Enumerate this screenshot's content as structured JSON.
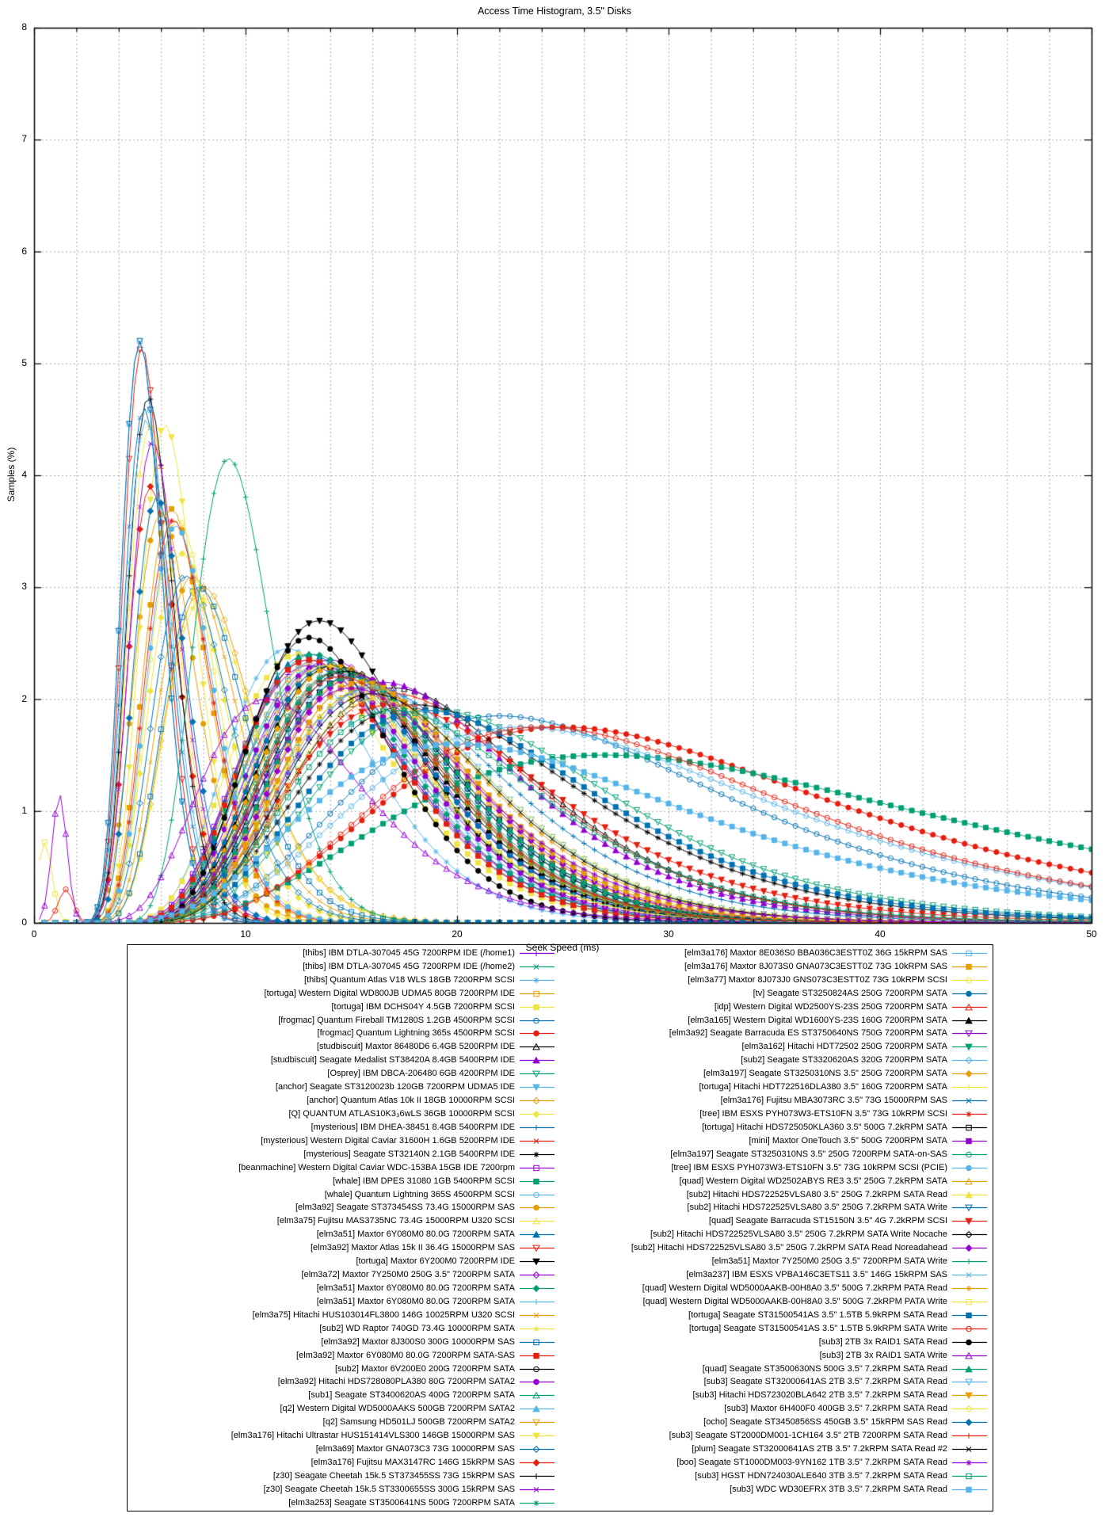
{
  "chart": {
    "title": "Access Time Histogram, 3.5\" Disks"
  },
  "chart_data": {
    "type": "line",
    "title": "Access Time Histogram, 3.5\" Disks",
    "xlabel": "Seek Speed (ms)",
    "ylabel": "Samples (%)",
    "xlim": [
      0,
      50
    ],
    "ylim": [
      0,
      8
    ],
    "x_ticks": [
      0,
      10,
      20,
      30,
      40,
      50
    ],
    "y_ticks": [
      0,
      1,
      2,
      3,
      4,
      5,
      6,
      7,
      8
    ],
    "x_minor_step": 2,
    "grid": true,
    "legend_position": "below",
    "legend_columns": 2,
    "legend_split_index": 42,
    "palette": [
      "#9400D3",
      "#009E73",
      "#56B4E9",
      "#E69F00",
      "#F0E442",
      "#0072B2",
      "#E51E10",
      "#000000"
    ],
    "series_fields": [
      "label",
      "color",
      "marker",
      "peak_ms",
      "peak_pct",
      "sigma",
      "spike_ms",
      "spike_pct"
    ],
    "series": [
      [
        "[thibs] IBM DTLA-307045 45G 7200RPM IDE (/home1)",
        "#9400D3",
        "plus",
        13,
        2.3,
        0.3,
        null,
        null
      ],
      [
        "[thibs] IBM DTLA-307045 45G 7200RPM IDE (/home2)",
        "#009E73",
        "cross",
        13.5,
        2.3,
        0.3,
        null,
        null
      ],
      [
        "[thibs] Quantum Atlas V18 WLS 18GB 7200RPM SCSI",
        "#56B4E9",
        "asterisk",
        12,
        2.45,
        0.28,
        null,
        null
      ],
      [
        "[tortuga] Western Digital WD800JB UDMA5 80GB 7200RPM IDE",
        "#E69F00",
        "square-open",
        13.5,
        2.35,
        0.3,
        null,
        null
      ],
      [
        "[tortuga] IBM DCHS04Y 4.5GB 7200RPM SCSI",
        "#F0E442",
        "square-filled",
        12.5,
        2.4,
        0.3,
        null,
        null
      ],
      [
        "[frogmac] Quantum Fireball TM1280S 1.2GB 4500RPM SCSI",
        "#0072B2",
        "circle-open",
        22,
        1.85,
        0.4,
        null,
        null
      ],
      [
        "[frogmac] Quantum Lightning 365s 4500RPM SCSI",
        "#E51E10",
        "circle-filled",
        25,
        1.75,
        0.42,
        null,
        null
      ],
      [
        "[studbiscuit] Maxtor 86480D6 6.4GB 5200RPM IDE",
        "#000000",
        "triangle-up-open",
        17,
        2.1,
        0.33,
        null,
        null
      ],
      [
        "[studbiscuit] Seagate Medalist ST38420A 8.4GB 5400RPM IDE",
        "#9400D3",
        "triangle-up-filled",
        16.5,
        2.15,
        0.33,
        null,
        null
      ],
      [
        "[Osprey] IBM DBCA-206480 6GB 4200RPM IDE",
        "#009E73",
        "triangle-down-open",
        19,
        1.9,
        0.36,
        null,
        null
      ],
      [
        "[anchor] Seagate ST3120023b 120GB 7200RPM UDMA5 IDE",
        "#56B4E9",
        "triangle-down-filled",
        13.8,
        2.3,
        0.3,
        null,
        null
      ],
      [
        "[anchor] Quantum Atlas 10k II 18GB 10000RPM SCSI",
        "#E69F00",
        "diamond-open",
        8,
        3.0,
        0.26,
        null,
        null
      ],
      [
        "[Q] QUANTUM ATLAS10K3₃6wLS 36GB 10000RPM SCSI",
        "#F0E442",
        "diamond-filled",
        7,
        3.3,
        0.25,
        null,
        null
      ],
      [
        "[mysterious] IBM DHEA-38451 8.4GB 5400RPM IDE",
        "#0072B2",
        "plus",
        16,
        2.1,
        0.33,
        null,
        null
      ],
      [
        "[mysterious] Western Digital Caviar 31600H 1.6GB 5200RPM IDE",
        "#E51E10",
        "cross",
        17,
        2.05,
        0.33,
        null,
        null
      ],
      [
        "[mysterious] Seagate ST32140N 2.1GB 5400RPM IDE",
        "#000000",
        "asterisk",
        18,
        1.95,
        0.36,
        null,
        null
      ],
      [
        "[beanmachine] Western Digital Caviar WDC-153BA 15GB IDE 7200rpm",
        "#9400D3",
        "square-open",
        13,
        2.35,
        0.3,
        null,
        null
      ],
      [
        "[whale] IBM DPES 31080 1GB 5400RPM SCSI",
        "#009E73",
        "square-filled",
        27,
        1.5,
        0.48,
        null,
        null
      ],
      [
        "[whale] Quantum Lightning 365S 4500RPM SCSI",
        "#56B4E9",
        "circle-open",
        23,
        1.75,
        0.42,
        null,
        null
      ],
      [
        "[elm3a92] Seagate ST373454SS 73.4G 15000RPM SAS",
        "#E69F00",
        "circle-filled",
        6,
        3.65,
        0.24,
        null,
        null
      ],
      [
        "[elm3a75] Fujitsu MAS3735NC 73.4G 15000RPM U320 SCSI",
        "#F0E442",
        "triangle-up-open",
        5.5,
        4.45,
        0.21,
        null,
        null
      ],
      [
        "[elm3a51] Maxtor 6Y080M0 80.0G 7200RPM SATA",
        "#0072B2",
        "triangle-up-filled",
        13,
        2.4,
        0.29,
        null,
        null
      ],
      [
        "[elm3a92] Maxtor Atlas 15k II 36.4G 15000RPM SAS",
        "#E51E10",
        "triangle-down-open",
        5.1,
        5.15,
        0.19,
        null,
        null
      ],
      [
        "[tortuga] Maxtor 6Y200M0 7200RPM IDE",
        "#000000",
        "triangle-down-filled",
        13.5,
        2.7,
        0.28,
        null,
        null
      ],
      [
        "[elm3a72] Maxtor 7Y250M0 250G 3.5\" 7200RPM SATA",
        "#9400D3",
        "diamond-open",
        14,
        2.35,
        0.29,
        null,
        null
      ],
      [
        "[elm3a51] Maxtor 6Y080M0 80.0G 7200RPM SATA",
        "#009E73",
        "diamond-filled",
        13.2,
        2.4,
        0.29,
        null,
        null
      ],
      [
        "[elm3a51] Maxtor 6Y080M0 80.0G 7200RPM SATA",
        "#56B4E9",
        "plus",
        13.4,
        2.35,
        0.29,
        null,
        null
      ],
      [
        "[elm3a75] Hitachi HUS103014FL3800 146G 10025RPM U320 SCSI",
        "#E69F00",
        "cross",
        7.5,
        3.1,
        0.25,
        null,
        null
      ],
      [
        "[sub2] WD Raptor 740GD 73.4G 10000RPM SATA",
        "#F0E442",
        "asterisk",
        8,
        2.9,
        0.26,
        null,
        null
      ],
      [
        "[elm3a92] Maxtor 8J300S0 300G 10000RPM SAS",
        "#0072B2",
        "square-open",
        7.8,
        3.0,
        0.25,
        null,
        null
      ],
      [
        "[elm3a92] Maxtor 6Y080M0 80.0G 7200RPM SATA-SAS",
        "#E51E10",
        "square-filled",
        13,
        2.35,
        0.29,
        null,
        null
      ],
      [
        "[sub2] Maxtor 6V200E0 200G 7200RPM SATA",
        "#000000",
        "circle-open",
        14,
        2.3,
        0.29,
        null,
        null
      ],
      [
        "[elm3a92] Hitachi HDS728080PLA380 80G 7200RPM SATA2",
        "#9400D3",
        "circle-filled",
        13.6,
        2.3,
        0.29,
        null,
        null
      ],
      [
        "[sub1] Seagate ST3400620AS 400G 7200RPM SATA",
        "#009E73",
        "triangle-up-open",
        14.5,
        2.25,
        0.29,
        null,
        null
      ],
      [
        "[q2] Western Digital WD5000AAKS 500GB 7200RPM SATA2",
        "#56B4E9",
        "triangle-up-filled",
        14.8,
        2.25,
        0.29,
        null,
        null
      ],
      [
        "[q2] Samsung HD501LJ 500GB 7200RPM SATA2",
        "#E69F00",
        "triangle-down-open",
        15.2,
        2.2,
        0.29,
        null,
        null
      ],
      [
        "[elm3a176] Hitachi Ultrastar HUS151414VLS300 146GB 15000RPM SAS",
        "#F0E442",
        "triangle-down-filled",
        6.2,
        4.45,
        0.21,
        null,
        null
      ],
      [
        "[elm3a69] Maxtor GNA073C3 73G 10000RPM SAS",
        "#0072B2",
        "diamond-open",
        7.2,
        3.1,
        0.25,
        null,
        null
      ],
      [
        "[elm3a176] Fujitsu MAX3147RC 146G 15kRPM SAS",
        "#E51E10",
        "diamond-filled",
        5.5,
        3.9,
        0.21,
        null,
        null
      ],
      [
        "[z30] Seagate Cheetah 15k.5 ST373455SS 73G 15kRPM SAS",
        "#000000",
        "plus",
        5.4,
        4.7,
        0.2,
        null,
        null
      ],
      [
        "[z30] Seagate Cheetah 15k.5 ST3300655SS 300G 15kRPM SAS",
        "#9400D3",
        "cross",
        5.6,
        4.3,
        0.21,
        null,
        null
      ],
      [
        "[elm3a253] Seagate ST3500641NS 500G 7200RPM SATA",
        "#009E73",
        "asterisk",
        14.2,
        2.3,
        0.29,
        null,
        null
      ],
      [
        "[elm3a176] Maxtor 8E036S0 BBA036C3ESTT0Z 36G 15kRPM SAS",
        "#56B4E9",
        "square-open",
        5.0,
        5.2,
        0.19,
        null,
        null
      ],
      [
        "[elm3a176] Maxtor 8J073S0 GNA073C3ESTT0Z 73G 10kRPM SAS",
        "#E69F00",
        "square-filled",
        6.5,
        3.7,
        0.23,
        null,
        null
      ],
      [
        "[elm3a77] Maxtor 8J073J0 GNS073C3ESTT0Z 73G 10kRPM SCSI",
        "#F0E442",
        "circle-open",
        6.8,
        3.6,
        0.23,
        null,
        null
      ],
      [
        "[tv] Seagate ST3250824AS 250G 7200RPM SATA",
        "#0072B2",
        "circle-filled",
        14,
        2.3,
        0.29,
        null,
        null
      ],
      [
        "[idp] Western Digital WD2500YS-23S 250G 7200RPM SATA",
        "#E51E10",
        "triangle-up-open",
        14.5,
        2.25,
        0.29,
        null,
        null
      ],
      [
        "[elm3a165] Western Digital WD1600YS-23S 160G 7200RPM SATA",
        "#000000",
        "triangle-up-filled",
        14.2,
        2.3,
        0.29,
        null,
        null
      ],
      [
        "[elm3a92] Seagate Barracuda ES ST3750640NS 750G 7200RPM SATA",
        "#9400D3",
        "triangle-down-open",
        15,
        2.2,
        0.29,
        null,
        null
      ],
      [
        "[elm3a162] Hitachi HDT72502 250G 7200RPM SATA",
        "#009E73",
        "triangle-down-filled",
        14.6,
        2.25,
        0.29,
        null,
        null
      ],
      [
        "[sub2] Seagate ST3320620AS 320G 7200RPM SATA",
        "#56B4E9",
        "diamond-open",
        14.9,
        2.2,
        0.29,
        null,
        null
      ],
      [
        "[elm3a197] Seagate ST3250310NS 3.5\" 250G 7200RPM SATA",
        "#E69F00",
        "diamond-filled",
        14.3,
        2.3,
        0.29,
        null,
        null
      ],
      [
        "[tortuga] Hitachi HDT722516DLA380 3.5\" 160G 7200RPM SATA",
        "#F0E442",
        "plus",
        13.8,
        2.3,
        0.29,
        null,
        null
      ],
      [
        "[elm3a176] Fujitsu MBA3073RC 3.5\" 73G 15000RPM SAS",
        "#0072B2",
        "cross",
        5.2,
        4.6,
        0.2,
        null,
        null
      ],
      [
        "[tree] IBM ESXS PYH073W3-ETS10FN 3.5\" 73G 10kRPM SCSI",
        "#E51E10",
        "asterisk",
        6.6,
        3.6,
        0.23,
        null,
        null
      ],
      [
        "[tortuga] Hitachi HDS725050KLA360 3.5\" 500G 7.2kRPM SATA",
        "#000000",
        "square-open",
        15,
        2.2,
        0.29,
        null,
        null
      ],
      [
        "[mini] Maxtor OneTouch 3.5\" 500G 7200RPM SATA",
        "#9400D3",
        "square-filled",
        15.5,
        2.15,
        0.29,
        null,
        null
      ],
      [
        "[elm3a197] Seagate ST3250310NS 3.5\" 250G 7200RPM SATA-on-SAS",
        "#009E73",
        "circle-open",
        14.4,
        2.25,
        0.29,
        null,
        null
      ],
      [
        "[tree] IBM ESXS PYH073W3-ETS10FN 3.5\" 73G 10kRPM SCSI (PCIE)",
        "#56B4E9",
        "circle-filled",
        6.7,
        3.55,
        0.23,
        null,
        null
      ],
      [
        "[quad] Western Digital WD2502ABYS RE3 3.5\" 250G 7.2kRPM SATA",
        "#E69F00",
        "triangle-up-open",
        15.2,
        2.2,
        0.29,
        null,
        null
      ],
      [
        "[sub2] Hitachi HDS722525VLSA80 3.5\" 250G 7.2kRPM SATA Read",
        "#F0E442",
        "triangle-up-filled",
        15.5,
        2.15,
        0.29,
        null,
        null
      ],
      [
        "[sub2] Hitachi HDS722525VLSA80 3.5\" 250G 7.2kRPM SATA Write",
        "#0072B2",
        "triangle-down-open",
        5.0,
        5.2,
        0.19,
        null,
        null
      ],
      [
        "[quad] Seagate Barracuda ST15150N 3.5\" 4G 7.2kRPM SCSI",
        "#E51E10",
        "triangle-down-filled",
        17,
        1.95,
        0.36,
        null,
        null
      ],
      [
        "[sub2] Hitachi HDS722525VLSA80 3.5\" 250G 7.2kRPM SATA Write Nocache",
        "#000000",
        "diamond-open",
        14.8,
        2.25,
        0.29,
        null,
        null
      ],
      [
        "[sub2] Hitachi HDS722525VLSA80 3.5\" 250G 7.2kRPM SATA Read Noreadahead",
        "#9400D3",
        "diamond-filled",
        15.3,
        2.2,
        0.29,
        null,
        null
      ],
      [
        "[elm3a51] Maxtor 7Y250M0 250G 3.5\" 7200RPM SATA Write",
        "#009E73",
        "plus",
        9.2,
        4.15,
        0.2,
        null,
        null
      ],
      [
        "[elm3a237] IBM ESXS VPBA146C3ETS11 3.5\" 146G 15kRPM SAS",
        "#56B4E9",
        "cross",
        5.3,
        4.5,
        0.2,
        null,
        null
      ],
      [
        "[quad] Western Digital WD5000AAKB-00H8A0 3.5\" 500G 7.2kRPM PATA Read",
        "#E69F00",
        "asterisk",
        15.8,
        2.1,
        0.3,
        null,
        null
      ],
      [
        "[quad] Western Digital WD5000AAKB-00H8A0 3.5\" 500G 7.2kRPM PATA Write",
        "#F0E442",
        "square-open",
        15.5,
        2.05,
        0.3,
        0.5,
        0.72
      ],
      [
        "[tortuga] Seagate ST31500541AS 3.5\" 1.5TB 5.9kRPM SATA Read",
        "#0072B2",
        "square-filled",
        18.5,
        1.9,
        0.36,
        null,
        null
      ],
      [
        "[tortuga] Seagate ST31500541AS 3.5\" 1.5TB 5.9kRPM SATA Write",
        "#E51E10",
        "circle-open",
        24,
        1.75,
        0.4,
        1.5,
        0.3
      ],
      [
        "[sub3] 2TB 3x RAID1 SATA Read",
        "#000000",
        "circle-filled",
        13,
        2.55,
        0.26,
        null,
        null
      ],
      [
        "[sub3] 2TB 3x RAID1 SATA Write",
        "#9400D3",
        "triangle-up-open",
        11,
        2.0,
        0.34,
        1.2,
        1.15
      ],
      [
        "[quad] Seagate ST3500630NS 500G 3.5\" 7.2kRPM SATA Read",
        "#009E73",
        "triangle-up-filled",
        15,
        2.2,
        0.29,
        null,
        null
      ],
      [
        "[sub3] Seagate ST32000641AS 2TB 3.5\" 7.2kRPM SATA Read",
        "#56B4E9",
        "triangle-down-open",
        16,
        2.1,
        0.3,
        null,
        null
      ],
      [
        "[sub3] Hitachi HDS723020BLA642 2TB 3.5\" 7.2kRPM SATA Read",
        "#E69F00",
        "triangle-down-filled",
        15.5,
        2.15,
        0.29,
        null,
        null
      ],
      [
        "[sub3] Maxtor 6H400F0 400GB 3.5\" 7.2kRPM SATA Read",
        "#F0E442",
        "diamond-open",
        16.2,
        2.0,
        0.3,
        null,
        null
      ],
      [
        "[ocho] Seagate ST3450856SS 450GB 3.5\" 15kRPM SAS Read",
        "#0072B2",
        "diamond-filled",
        5.8,
        3.8,
        0.21,
        null,
        null
      ],
      [
        "[sub3] Seagate ST2000DM001-1CH164 3.5\" 2TB 7200RPM SATA Read",
        "#E51E10",
        "plus",
        14.5,
        2.2,
        0.29,
        null,
        null
      ],
      [
        "[plum] Seagate ST32000641AS 2TB 3.5\" 7.2kRPM SATA Read #2",
        "#000000",
        "cross",
        16,
        2.05,
        0.3,
        null,
        null
      ],
      [
        "[boo] Seagate ST1000DM003-9YN162 1TB 3.5\" 7.2kRPM SATA Read",
        "#9400D3",
        "asterisk",
        15,
        2.1,
        0.32,
        null,
        null
      ],
      [
        "[sub3] HGST HDN724030ALE640 3TB 3.5\" 7.2kRPM SATA Read",
        "#009E73",
        "square-open",
        17,
        1.9,
        0.34,
        null,
        null
      ],
      [
        "[sub3] WDC WD30EFRX 3TB 3.5\" 7.2kRPM SATA Read",
        "#56B4E9",
        "square-filled",
        20,
        1.6,
        0.45,
        null,
        null
      ]
    ]
  }
}
